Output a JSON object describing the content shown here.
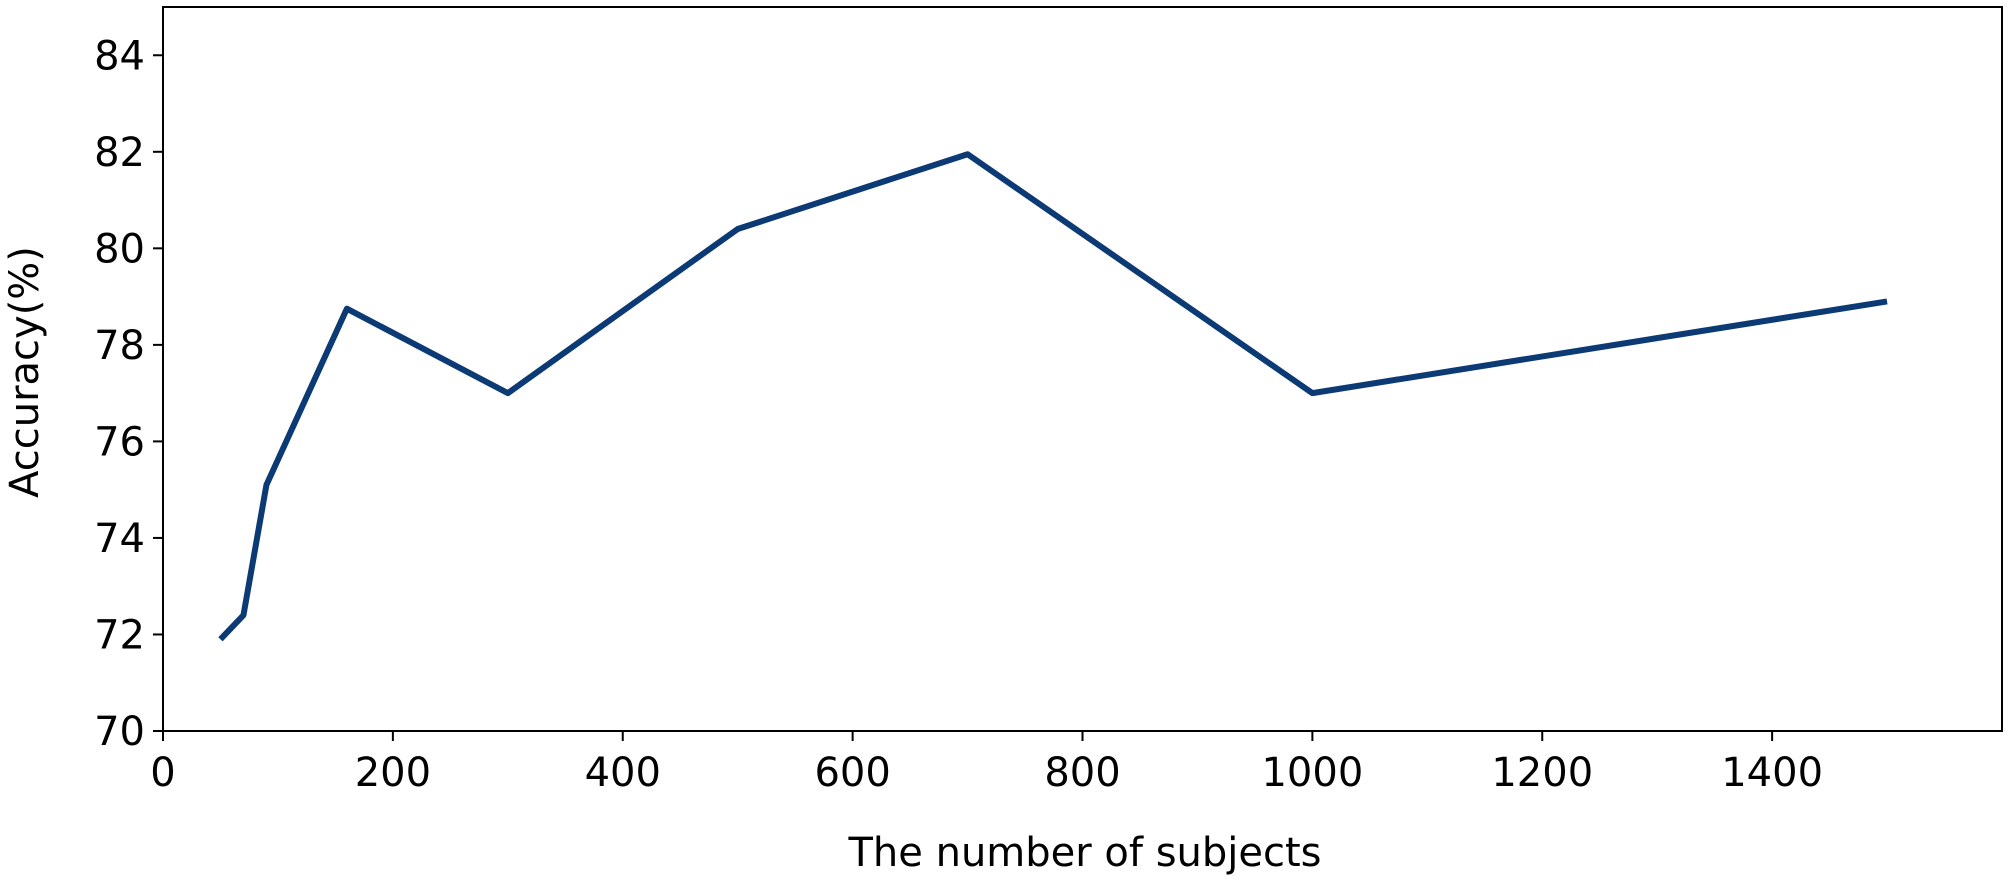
{
  "chart_data": {
    "type": "line",
    "x_label": "The number of subjects",
    "y_label": "Accuracy(%)",
    "x": [
      50,
      70,
      90,
      160,
      300,
      500,
      700,
      1000,
      1500
    ],
    "series": [
      {
        "color": "#0b3a75",
        "values": [
          71.9,
          72.4,
          75.1,
          78.75,
          77.0,
          80.4,
          81.95,
          77.0,
          78.9
        ]
      }
    ],
    "xlim": [
      0,
      1600
    ],
    "ylim": [
      70,
      85
    ],
    "xticks": [
      0,
      200,
      400,
      600,
      800,
      1000,
      1200,
      1400
    ],
    "yticks": [
      70,
      72,
      74,
      76,
      78,
      80,
      82,
      84
    ],
    "grid": false
  }
}
